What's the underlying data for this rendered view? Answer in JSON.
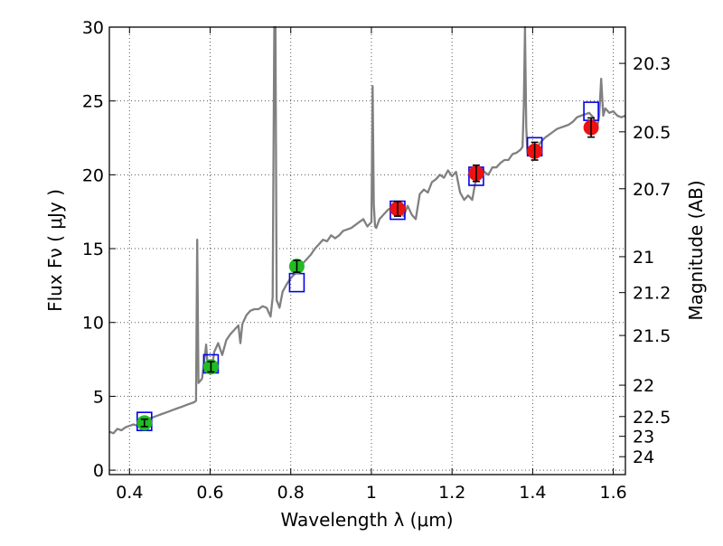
{
  "chart_data": {
    "type": "scatter",
    "title": "",
    "xlabel": "Wavelength  λ (μm)",
    "ylabel": "Flux  Fν  ( μJy )",
    "y2label": "Magnitude (AB)",
    "xlim": [
      0.35,
      1.63
    ],
    "ylim": [
      -0.3,
      30
    ],
    "grid": true,
    "grid_style": "dotted",
    "x_ticks": [
      0.4,
      0.6,
      0.8,
      1.0,
      1.2,
      1.4,
      1.6
    ],
    "x_tick_labels": [
      "0.4",
      "0.6",
      "0.8",
      "1",
      "1.2",
      "1.4",
      "1.6"
    ],
    "y_ticks": [
      0,
      5,
      10,
      15,
      20,
      25,
      30
    ],
    "y_tick_labels": [
      "0",
      "5",
      "10",
      "15",
      "20",
      "25",
      "30"
    ],
    "y2_ticks": [
      {
        "label": "20.3",
        "mag": 20.3
      },
      {
        "label": "20.5",
        "mag": 20.5
      },
      {
        "label": "20.7",
        "mag": 20.7
      },
      {
        "label": "21",
        "mag": 21.0
      },
      {
        "label": "21.2",
        "mag": 21.2
      },
      {
        "label": "21.5",
        "mag": 21.5
      },
      {
        "label": "22",
        "mag": 22.0
      },
      {
        "label": "22.5",
        "mag": 22.5
      },
      {
        "label": "23",
        "mag": 23.0
      },
      {
        "label": "24",
        "mag": 24.0
      }
    ],
    "colors": {
      "spectrum": "#808080",
      "observed_optical": "#22bb22",
      "observed_nir": "#ee1111",
      "model_box": "#0000ee",
      "errorbar": "#000000",
      "grid": "#555555"
    },
    "spectrum": {
      "x": [
        0.35,
        0.36,
        0.37,
        0.38,
        0.39,
        0.4,
        0.41,
        0.42,
        0.43,
        0.44,
        0.45,
        0.46,
        0.47,
        0.48,
        0.49,
        0.5,
        0.51,
        0.52,
        0.53,
        0.54,
        0.55,
        0.56,
        0.565,
        0.568,
        0.571,
        0.574,
        0.58,
        0.59,
        0.595,
        0.6,
        0.605,
        0.61,
        0.62,
        0.63,
        0.64,
        0.65,
        0.66,
        0.67,
        0.675,
        0.68,
        0.69,
        0.7,
        0.71,
        0.72,
        0.73,
        0.74,
        0.75,
        0.755,
        0.759,
        0.762,
        0.765,
        0.768,
        0.772,
        0.78,
        0.79,
        0.8,
        0.81,
        0.82,
        0.83,
        0.84,
        0.85,
        0.86,
        0.87,
        0.88,
        0.89,
        0.9,
        0.91,
        0.92,
        0.93,
        0.94,
        0.95,
        0.96,
        0.97,
        0.98,
        0.99,
        1.0,
        1.003,
        1.006,
        1.009,
        1.012,
        1.02,
        1.03,
        1.04,
        1.05,
        1.06,
        1.07,
        1.08,
        1.09,
        1.1,
        1.11,
        1.12,
        1.13,
        1.14,
        1.15,
        1.16,
        1.17,
        1.18,
        1.19,
        1.2,
        1.21,
        1.22,
        1.23,
        1.24,
        1.25,
        1.26,
        1.27,
        1.28,
        1.29,
        1.3,
        1.31,
        1.32,
        1.33,
        1.34,
        1.35,
        1.36,
        1.37,
        1.375,
        1.378,
        1.381,
        1.384,
        1.387,
        1.39,
        1.4,
        1.41,
        1.42,
        1.43,
        1.44,
        1.45,
        1.46,
        1.47,
        1.48,
        1.49,
        1.5,
        1.51,
        1.52,
        1.53,
        1.54,
        1.55,
        1.56,
        1.565,
        1.57,
        1.575,
        1.58,
        1.59,
        1.6,
        1.61,
        1.62,
        1.63
      ],
      "y": [
        2.6,
        2.5,
        2.8,
        2.7,
        2.9,
        3.0,
        3.1,
        3.0,
        3.3,
        3.4,
        3.5,
        3.6,
        3.7,
        3.8,
        3.9,
        4.0,
        4.1,
        4.2,
        4.3,
        4.4,
        4.5,
        4.6,
        4.7,
        15.6,
        5.9,
        6.0,
        6.2,
        8.5,
        6.6,
        6.8,
        7.0,
        8.0,
        8.6,
        7.8,
        8.8,
        9.2,
        9.5,
        9.8,
        8.6,
        9.9,
        10.5,
        10.8,
        10.9,
        10.9,
        11.1,
        11.0,
        10.4,
        11.7,
        30.0,
        30.0,
        11.5,
        11.3,
        11.0,
        12.1,
        12.6,
        13.0,
        13.3,
        13.7,
        14.0,
        14.3,
        14.6,
        15.0,
        15.3,
        15.6,
        15.5,
        15.9,
        15.7,
        15.9,
        16.2,
        16.3,
        16.4,
        16.6,
        16.8,
        17.0,
        16.5,
        16.8,
        26.0,
        18.0,
        16.5,
        16.4,
        17.0,
        17.3,
        17.6,
        17.8,
        17.9,
        17.6,
        17.2,
        17.9,
        17.3,
        17.0,
        18.7,
        19.0,
        18.8,
        19.5,
        19.7,
        20.0,
        19.8,
        20.3,
        19.9,
        20.2,
        18.8,
        18.3,
        18.6,
        18.3,
        19.8,
        20.5,
        20.2,
        20.0,
        20.5,
        20.5,
        20.8,
        21.0,
        21.0,
        21.4,
        21.5,
        21.7,
        21.9,
        24.7,
        30.0,
        23.2,
        21.5,
        21.6,
        21.6,
        21.8,
        22.2,
        22.5,
        22.7,
        22.9,
        23.1,
        23.2,
        23.3,
        23.4,
        23.6,
        23.9,
        24.0,
        24.1,
        24.2,
        23.9,
        23.2,
        24.0,
        26.5,
        24.0,
        24.5,
        24.2,
        24.3,
        24.0,
        23.9,
        24.0
      ]
    },
    "observed_optical": {
      "x": [
        0.437,
        0.602,
        0.815
      ],
      "y": [
        3.2,
        7.0,
        13.8
      ],
      "yerr": [
        0.25,
        0.35,
        0.4
      ]
    },
    "observed_nir": {
      "x": [
        1.065,
        1.26,
        1.405,
        1.545
      ],
      "y": [
        17.7,
        20.1,
        21.6,
        23.2
      ],
      "yerr": [
        0.5,
        0.55,
        0.6,
        0.65
      ]
    },
    "model_boxes": {
      "x": [
        0.437,
        0.602,
        0.815,
        1.065,
        1.26,
        1.405,
        1.545
      ],
      "y": [
        3.3,
        7.2,
        12.7,
        17.6,
        19.9,
        21.9,
        24.3
      ]
    }
  }
}
